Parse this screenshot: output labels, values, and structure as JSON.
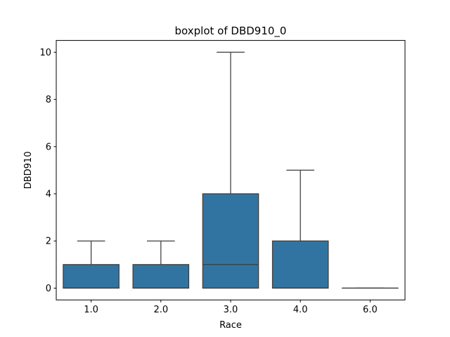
{
  "chart_data": {
    "type": "box",
    "title": "boxplot of DBD910_0",
    "xlabel": "Race",
    "ylabel": "DBD910",
    "ylim": [
      -0.5,
      10.5
    ],
    "yticks": [
      0,
      2,
      4,
      6,
      8,
      10
    ],
    "grid": false,
    "legend": "none",
    "box_color": "#3274a1",
    "line_color": "#3d3d3d",
    "categories": [
      "1.0",
      "2.0",
      "3.0",
      "4.0",
      "6.0"
    ],
    "boxes": [
      {
        "category": "1.0",
        "whisker_low": 0,
        "q1": 0,
        "median": 0,
        "q3": 1,
        "whisker_high": 2
      },
      {
        "category": "2.0",
        "whisker_low": 0,
        "q1": 0,
        "median": 0,
        "q3": 1,
        "whisker_high": 2
      },
      {
        "category": "3.0",
        "whisker_low": 0,
        "q1": 0,
        "median": 1,
        "q3": 4,
        "whisker_high": 10
      },
      {
        "category": "4.0",
        "whisker_low": 0,
        "q1": 0,
        "median": 0,
        "q3": 2,
        "whisker_high": 5
      },
      {
        "category": "6.0",
        "whisker_low": 0,
        "q1": 0,
        "median": 0,
        "q3": 0,
        "whisker_high": 0
      }
    ]
  }
}
